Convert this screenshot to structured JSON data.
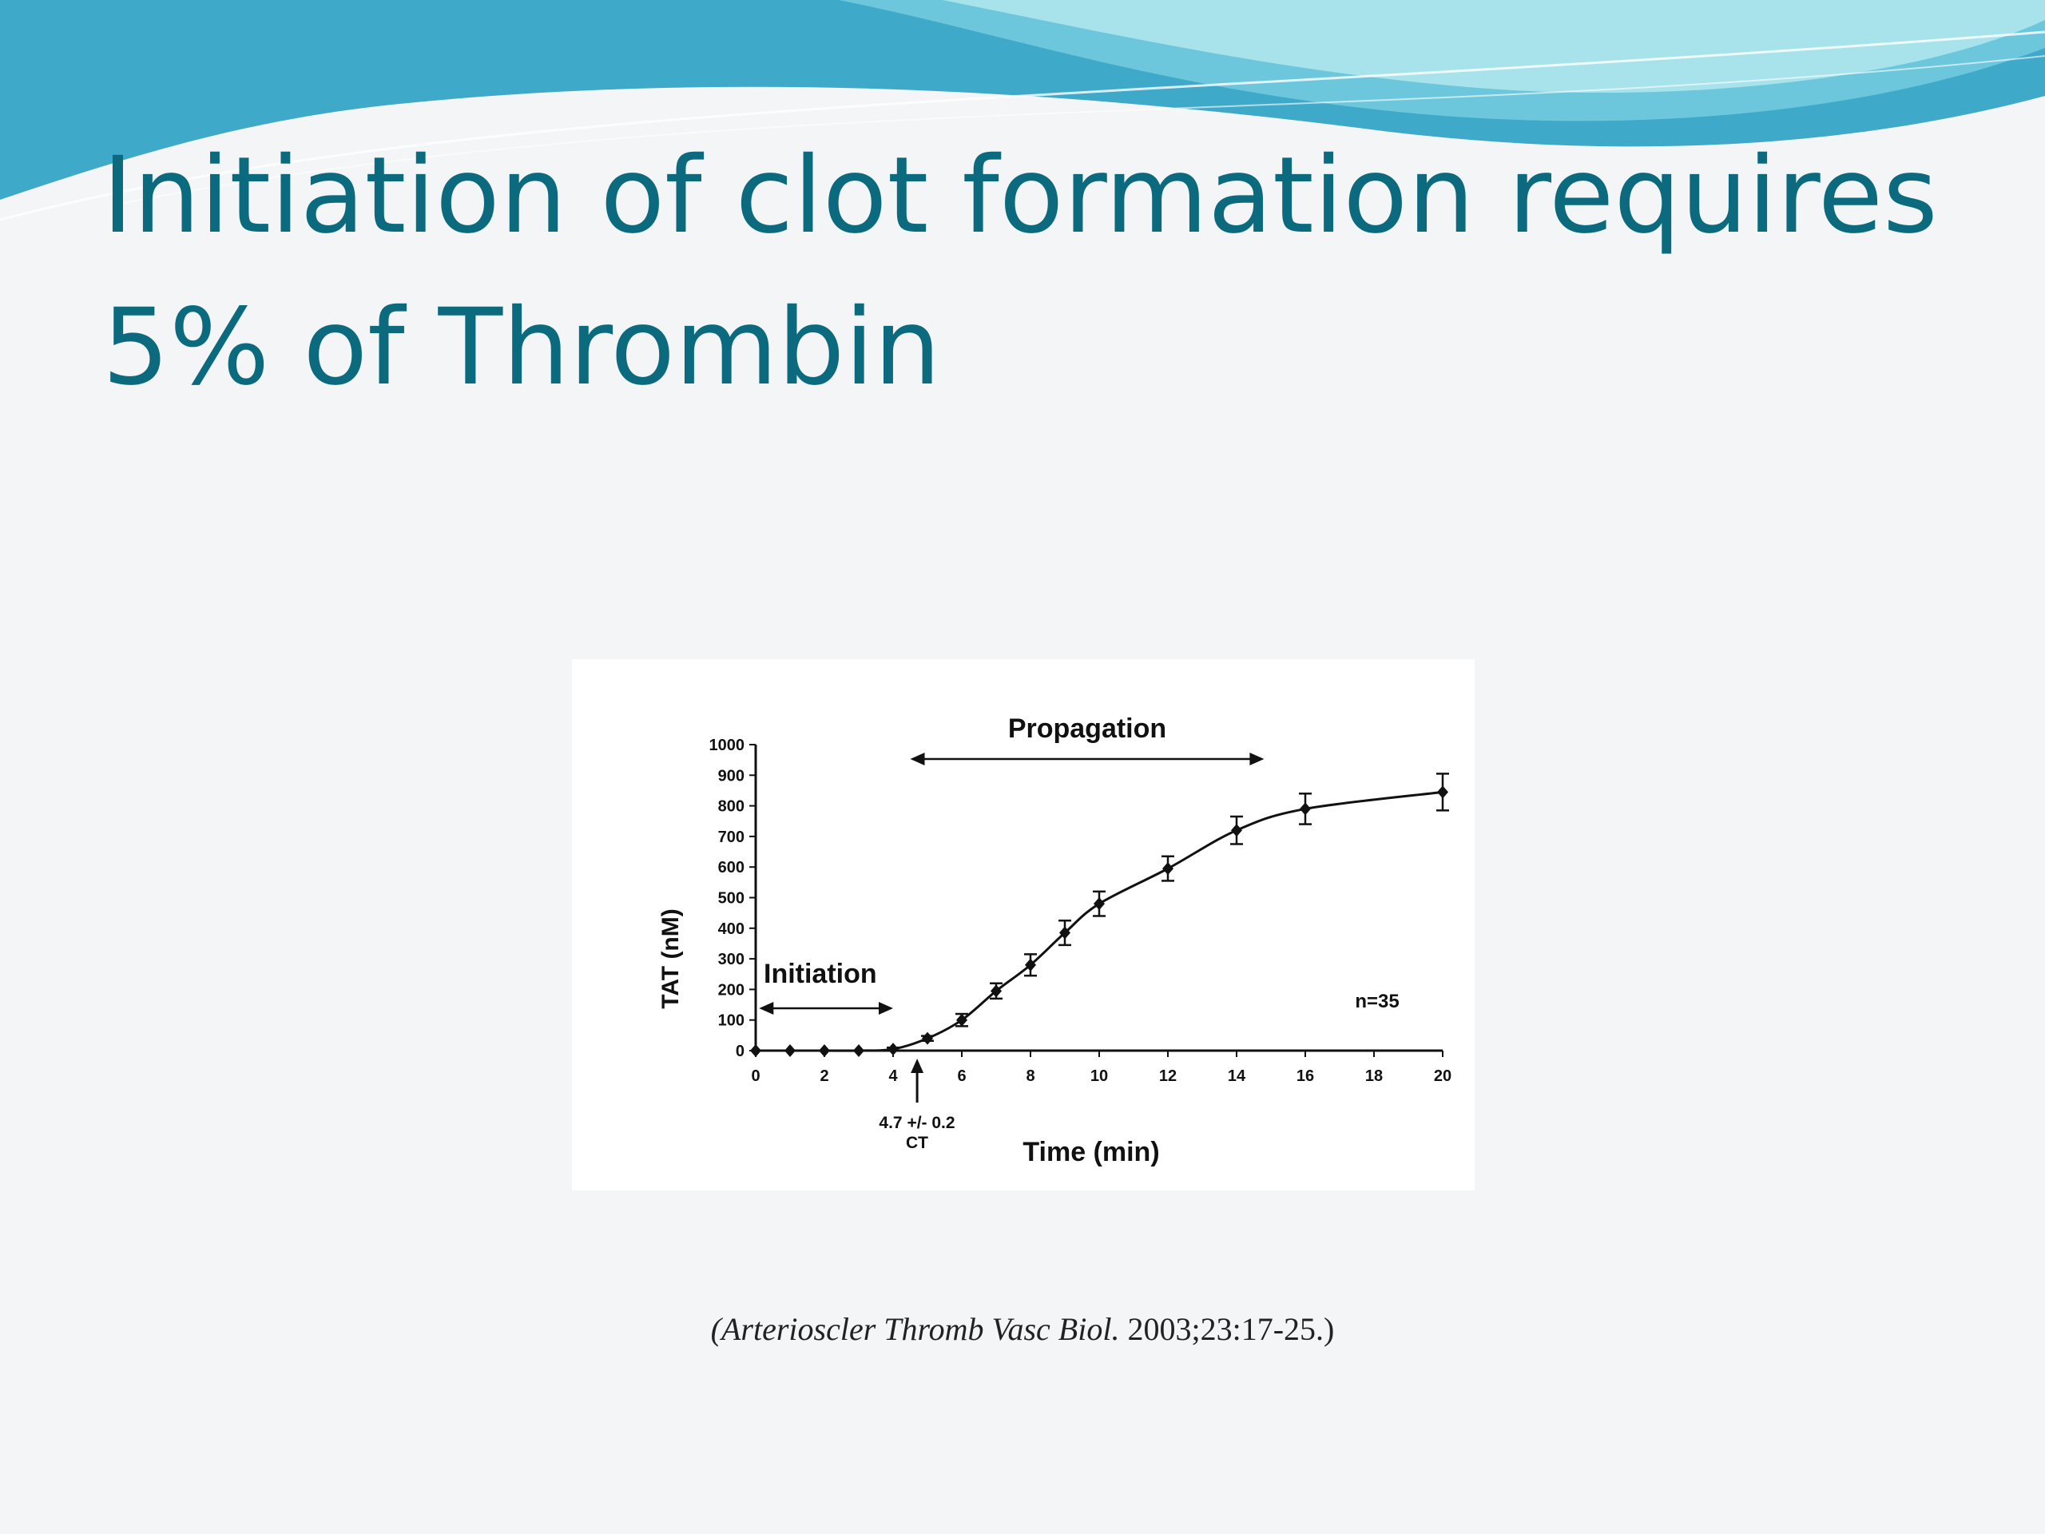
{
  "slide": {
    "title_line1": "Initiation of clot formation requires",
    "title_line2": "5% of Thrombin",
    "citation_italic": "(Arterioscler Thromb Vasc Biol.",
    "citation_rest": " 2003;23:17-25.)",
    "colors": {
      "title": "#0c6a7e",
      "wave_light": "#a8e3ec",
      "wave_mid": "#6cc7dc",
      "wave_dark": "#3fa9c9"
    }
  },
  "chart_data": {
    "type": "line",
    "xlabel": "Time (min)",
    "ylabel": "TAT  (nM)",
    "xlim": [
      0,
      20
    ],
    "ylim": [
      0,
      1000
    ],
    "xticks": [
      0,
      2,
      4,
      6,
      8,
      10,
      12,
      14,
      16,
      18,
      20
    ],
    "yticks": [
      0,
      100,
      200,
      300,
      400,
      500,
      600,
      700,
      800,
      900,
      1000
    ],
    "series": [
      {
        "x": [
          0,
          1,
          2,
          3,
          4,
          5,
          6,
          7,
          8,
          9,
          10,
          12,
          14,
          16,
          20
        ],
        "y": [
          0,
          0,
          0,
          0,
          5,
          40,
          100,
          195,
          280,
          385,
          480,
          595,
          720,
          790,
          845
        ],
        "err": [
          0,
          0,
          0,
          0,
          5,
          8,
          20,
          25,
          35,
          40,
          40,
          40,
          45,
          50,
          60
        ]
      }
    ],
    "annotations": {
      "propagation": {
        "label": "Propagation",
        "from": 4.5,
        "to": 14.8
      },
      "initiation": {
        "label": "Initiation",
        "from": 0.1,
        "to": 4.0
      },
      "ct_marker": {
        "x": 4.7,
        "value_label": "4.7 +/- 0.2",
        "label": "CT"
      },
      "n_label": "n=35"
    }
  }
}
